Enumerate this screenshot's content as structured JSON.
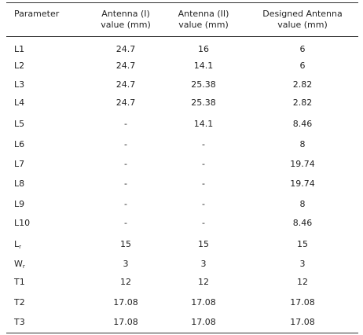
{
  "table": {
    "header": [
      [
        "Parameter"
      ],
      [
        "Antenna (I)",
        "value (mm)"
      ],
      [
        "Antenna (II)",
        "value (mm)"
      ],
      [
        "Designed Antenna",
        "value (mm)"
      ]
    ],
    "rows": [
      [
        {
          "base": "L1"
        },
        "24.7",
        "16",
        "6"
      ],
      [
        {
          "base": "L2"
        },
        "24.7",
        "14.1",
        "6"
      ],
      [
        {
          "base": "L3"
        },
        "24.7",
        "25.38",
        "2.82"
      ],
      [
        {
          "base": "L4"
        },
        "24.7",
        "25.38",
        "2.82"
      ],
      [
        {
          "base": "L5"
        },
        "-",
        "14.1",
        "8.46"
      ],
      [
        {
          "base": "L6"
        },
        "-",
        "-",
        "8"
      ],
      [
        {
          "base": "L7"
        },
        "-",
        "-",
        "19.74"
      ],
      [
        {
          "base": "L8"
        },
        "-",
        "-",
        "19.74"
      ],
      [
        {
          "base": "L9"
        },
        "-",
        "-",
        "8"
      ],
      [
        {
          "base": "L10"
        },
        "-",
        "-",
        "8.46"
      ],
      [
        {
          "base": "L",
          "sub": "r"
        },
        "15",
        "15",
        "15"
      ],
      [
        {
          "base": "W",
          "sub": "r"
        },
        "3",
        "3",
        "3"
      ],
      [
        {
          "base": "T1"
        },
        "12",
        "12",
        "12"
      ],
      [
        {
          "base": "T2"
        },
        "17.08",
        "17.08",
        "17.08"
      ],
      [
        {
          "base": "T3"
        },
        "17.08",
        "17.08",
        "17.08"
      ]
    ]
  }
}
